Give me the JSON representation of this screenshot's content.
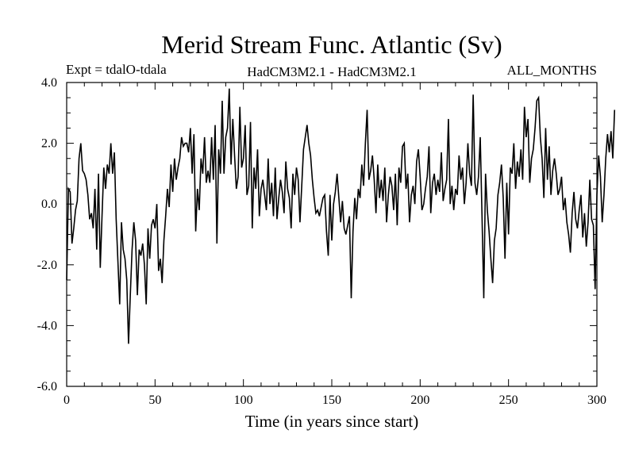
{
  "chart_data": {
    "type": "line",
    "title": "Merid Stream Func. Atlantic (Sv)",
    "subtitle_left": "Expt = tdalO-tdala",
    "subtitle_center": "HadCM3M2.1 - HadCM3M2.1",
    "subtitle_right": "ALL_MONTHS",
    "xlabel": "Time (in years since start)",
    "ylabel": "",
    "xlim": [
      0,
      300
    ],
    "ylim": [
      -6.0,
      4.0
    ],
    "x_ticks": [
      0,
      50,
      100,
      150,
      200,
      250,
      300
    ],
    "x_tick_labels": [
      "0",
      "50",
      "100",
      "150",
      "200",
      "250",
      "300"
    ],
    "y_ticks": [
      -6.0,
      -4.0,
      -2.0,
      0.0,
      2.0,
      4.0
    ],
    "y_tick_labels": [
      "-6.0",
      "-4.0",
      "-2.0",
      "0.0",
      "2.0",
      "4.0"
    ],
    "grid": false,
    "line_color": "#000000",
    "series": [
      {
        "x_start": 0,
        "x_step": 1,
        "values": [
          -2.5,
          0.5,
          0.4,
          -1.3,
          -0.8,
          -0.2,
          0.1,
          1.5,
          2.0,
          1.1,
          1.0,
          0.8,
          0.3,
          -0.5,
          -0.3,
          -0.8,
          0.5,
          -1.5,
          1.0,
          -2.1,
          -0.4,
          1.2,
          0.5,
          1.3,
          1.0,
          2.0,
          1.0,
          1.7,
          -0.5,
          -1.9,
          -3.3,
          -0.6,
          -1.5,
          -1.8,
          -2.5,
          -4.6,
          -3.0,
          -1.5,
          -0.6,
          -1.2,
          -3.0,
          -1.5,
          -1.7,
          -1.3,
          -2.0,
          -3.3,
          -0.8,
          -1.8,
          -0.7,
          -0.5,
          -0.8,
          0.0,
          -2.2,
          -1.8,
          -2.6,
          -1.2,
          -0.4,
          0.5,
          -0.1,
          1.3,
          0.4,
          1.5,
          0.8,
          1.2,
          1.5,
          2.2,
          1.9,
          2.0,
          2.0,
          1.7,
          2.5,
          1.0,
          2.3,
          -0.9,
          0.5,
          -0.2,
          1.5,
          1.0,
          2.2,
          0.7,
          1.1,
          0.7,
          2.2,
          0.8,
          2.6,
          -1.3,
          1.8,
          1.0,
          3.4,
          1.0,
          2.2,
          2.5,
          3.8,
          1.3,
          2.8,
          1.6,
          0.5,
          0.9,
          3.2,
          1.2,
          1.5,
          2.6,
          0.3,
          0.6,
          2.7,
          -0.8,
          1.2,
          0.5,
          1.8,
          -0.4,
          0.5,
          0.8,
          0.3,
          -0.2,
          1.5,
          0.0,
          0.7,
          -0.4,
          1.2,
          -0.5,
          0.2,
          0.8,
          0.4,
          -0.3,
          1.4,
          0.5,
          0.2,
          -0.8,
          1.0,
          0.3,
          1.2,
          0.8,
          -0.6,
          0.6,
          1.8,
          2.2,
          2.6,
          2.0,
          1.6,
          0.8,
          0.2,
          -0.3,
          -0.2,
          -0.4,
          -0.1,
          0.2,
          0.3,
          -0.9,
          -1.7,
          0.3,
          -1.2,
          0.0,
          0.4,
          1.0,
          0.2,
          -0.6,
          0.1,
          -0.8,
          -1.0,
          -0.7,
          -0.4,
          -3.1,
          -0.9,
          0.2,
          -0.5,
          0.5,
          0.2,
          1.3,
          0.6,
          2.0,
          3.1,
          0.8,
          1.1,
          1.6,
          0.8,
          -0.3,
          1.3,
          0.2,
          0.8,
          0.1,
          1.2,
          -0.6,
          0.3,
          0.9,
          0.6,
          -0.2,
          1.0,
          -0.7,
          1.2,
          0.7,
          1.9,
          2.0,
          0.5,
          1.0,
          -0.6,
          0.3,
          0.6,
          0.0,
          1.4,
          1.8,
          0.9,
          -0.2,
          0.0,
          0.5,
          0.9,
          1.9,
          -0.3,
          0.7,
          1.0,
          0.3,
          0.8,
          0.4,
          1.7,
          0.1,
          0.5,
          0.8,
          2.8,
          0.0,
          0.6,
          -0.2,
          0.5,
          0.3,
          1.6,
          0.8,
          1.2,
          0.0,
          0.7,
          2.0,
          1.0,
          0.6,
          3.6,
          0.7,
          0.3,
          0.9,
          2.2,
          -0.4,
          -3.1,
          1.0,
          -0.2,
          -0.9,
          -1.8,
          -2.6,
          -1.2,
          -0.8,
          0.3,
          0.7,
          1.3,
          0.2,
          -1.8,
          0.7,
          -1.0,
          1.2,
          1.0,
          2.0,
          0.5,
          1.4,
          0.9,
          1.8,
          0.8,
          3.2,
          2.2,
          2.8,
          0.7,
          1.5,
          1.8,
          2.5,
          3.4,
          3.5,
          2.2,
          1.5,
          0.2,
          2.5,
          0.8,
          1.9,
          0.3,
          1.1,
          1.5,
          1.0,
          0.3,
          0.5,
          0.9,
          -0.2,
          0.2,
          -0.6,
          -1.0,
          -1.6,
          -0.3,
          0.4,
          -0.5,
          -0.8,
          -0.2,
          0.3,
          -1.1,
          -0.3,
          -1.4,
          -0.6,
          0.8,
          -0.5,
          -0.7,
          -2.8,
          0.3,
          1.6,
          0.9,
          -0.6,
          0.3,
          1.5,
          2.3,
          1.7,
          2.4,
          1.5,
          3.1
        ]
      }
    ]
  }
}
